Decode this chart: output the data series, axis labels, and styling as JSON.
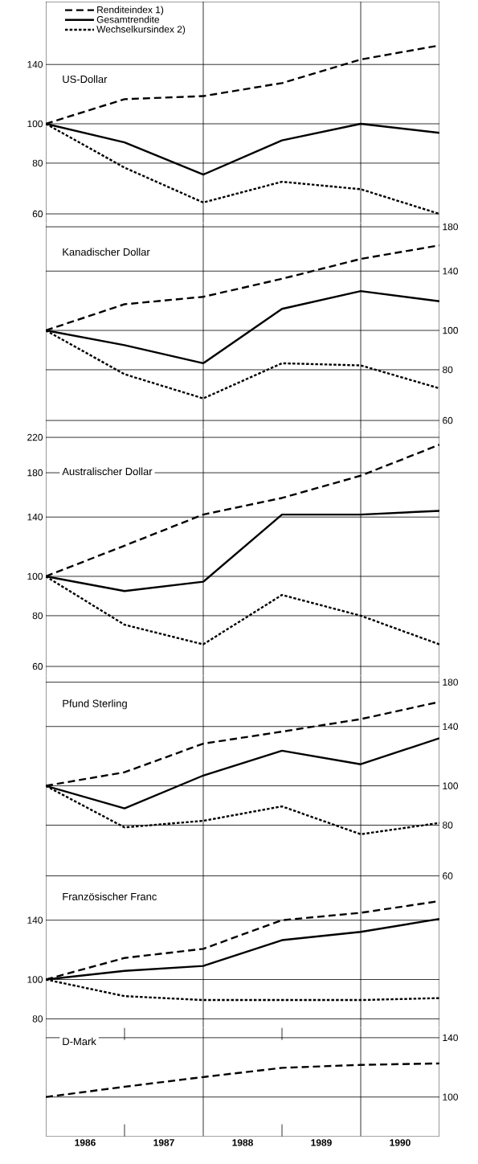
{
  "chart_data": [
    {
      "type": "line",
      "title": "US-Dollar",
      "x": [
        1986,
        1987,
        1988,
        1989,
        1990,
        1991
      ],
      "xlim": [
        1986,
        1991
      ],
      "ylim": [
        57,
        200
      ],
      "yticks": [
        60,
        80,
        100,
        140
      ],
      "log": true,
      "grid": "y",
      "tick_labels": "y",
      "legend": "top left",
      "ref_lines": [
        {
          "axis": "x",
          "value": 1988
        },
        {
          "axis": "x",
          "value": 1990
        }
      ],
      "series": [
        {
          "name": "Renditeindex 1)",
          "color": "#000000",
          "line_style": "dashed",
          "values": [
            100,
            115,
            117,
            126,
            144,
            156
          ]
        },
        {
          "name": "Gesamtrendite",
          "color": "#000000",
          "line_style": "solid",
          "values": [
            100,
            90,
            75,
            91,
            100,
            95
          ]
        },
        {
          "name": "Wechselkursindex 2)",
          "color": "#000000",
          "line_style": "dotted",
          "values": [
            100,
            78,
            64,
            72,
            69,
            60
          ]
        }
      ]
    },
    {
      "type": "line",
      "title": "Kanadischer Dollar",
      "x": [
        1986,
        1987,
        1988,
        1989,
        1990,
        1991
      ],
      "xlim": [
        1986,
        1991
      ],
      "ylim": [
        57,
        184
      ],
      "yticks": [
        60,
        80,
        100,
        140,
        180
      ],
      "log": true,
      "grid": "y",
      "tick_labels": "y",
      "ref_lines": [
        {
          "axis": "x",
          "value": 1988
        },
        {
          "axis": "x",
          "value": 1990
        }
      ],
      "series": [
        {
          "color": "#000000",
          "line_style": "dashed",
          "values": [
            100,
            116,
            121,
            134,
            150,
            162
          ]
        },
        {
          "color": "#000000",
          "line_style": "solid",
          "values": [
            100,
            92,
            83,
            113,
            125,
            118
          ]
        },
        {
          "color": "#000000",
          "line_style": "dotted",
          "values": [
            100,
            78,
            68,
            83,
            82,
            72
          ]
        }
      ]
    },
    {
      "type": "line",
      "title": "Australischer Dollar",
      "x": [
        1986,
        1987,
        1988,
        1989,
        1990,
        1991
      ],
      "xlim": [
        1986,
        1991
      ],
      "ylim": [
        57,
        230
      ],
      "yticks": [
        60,
        80,
        100,
        140,
        180,
        220
      ],
      "log": true,
      "grid": "y",
      "tick_labels": "y",
      "ref_lines": [
        {
          "axis": "x",
          "value": 1988
        },
        {
          "axis": "x",
          "value": 1990
        }
      ],
      "series": [
        {
          "color": "#000000",
          "line_style": "dashed",
          "values": [
            100,
            119,
            142,
            156,
            177,
            211
          ]
        },
        {
          "color": "#000000",
          "line_style": "solid",
          "values": [
            100,
            92,
            97,
            142,
            142,
            145
          ]
        },
        {
          "color": "#000000",
          "line_style": "dotted",
          "values": [
            100,
            76,
            68,
            90,
            80,
            68
          ]
        }
      ]
    },
    {
      "type": "line",
      "title": "Pfund Sterling",
      "x": [
        1986,
        1987,
        1988,
        1989,
        1990,
        1991
      ],
      "xlim": [
        1986,
        1991
      ],
      "ylim": [
        58,
        187
      ],
      "yticks": [
        60,
        80,
        100,
        140,
        180
      ],
      "log": true,
      "grid": "y",
      "tick_labels": "y",
      "ref_lines": [
        {
          "axis": "x",
          "value": 1988
        },
        {
          "axis": "x",
          "value": 1990
        }
      ],
      "series": [
        {
          "color": "#000000",
          "line_style": "dashed",
          "values": [
            100,
            108,
            127,
            136,
            146,
            161
          ]
        },
        {
          "color": "#000000",
          "line_style": "solid",
          "values": [
            100,
            88,
            106,
            122,
            113,
            131
          ]
        },
        {
          "color": "#000000",
          "line_style": "dotted",
          "values": [
            100,
            79,
            82,
            89,
            76,
            81
          ]
        }
      ]
    },
    {
      "type": "line",
      "title": "Französischer Franc",
      "x": [
        1986,
        1987,
        1988,
        1989,
        1990,
        1991
      ],
      "xlim": [
        1986,
        1991
      ],
      "ylim": [
        76,
        174
      ],
      "yticks": [
        80,
        100,
        140
      ],
      "log": true,
      "grid": "y",
      "tick_labels": "y",
      "ref_lines": [
        {
          "axis": "x",
          "value": 1988
        },
        {
          "axis": "x",
          "value": 1990
        }
      ],
      "series": [
        {
          "color": "#000000",
          "line_style": "dashed",
          "values": [
            100,
            113,
            119,
            140,
            146,
            156
          ]
        },
        {
          "color": "#000000",
          "line_style": "solid",
          "values": [
            100,
            105,
            108,
            125,
            131,
            141
          ]
        },
        {
          "color": "#000000",
          "line_style": "dotted",
          "values": [
            100,
            91,
            89,
            89,
            89,
            90
          ]
        }
      ]
    },
    {
      "type": "line",
      "title": "D-Mark",
      "x": [
        1986,
        1987,
        1988,
        1989,
        1990,
        1991
      ],
      "xlim": [
        1986,
        1991
      ],
      "ylim": [
        80,
        148
      ],
      "yticks": [
        100,
        140
      ],
      "log": true,
      "grid": "y",
      "xticks": [
        {
          "value": 1986.5,
          "label": "1986"
        },
        {
          "value": 1987,
          "label": null
        },
        {
          "value": 1987.5,
          "label": "1987"
        },
        {
          "value": 1988.5,
          "label": "1988"
        },
        {
          "value": 1989,
          "label": null
        },
        {
          "value": 1989.5,
          "label": "1989"
        },
        {
          "value": 1990.5,
          "label": "1990"
        }
      ],
      "ref_lines": [
        {
          "axis": "x",
          "value": 1988
        },
        {
          "axis": "x",
          "value": 1990
        }
      ],
      "series": [
        {
          "color": "#000000",
          "line_style": "dashed",
          "values": [
            100,
            106,
            112,
            118,
            120,
            121
          ]
        }
      ]
    }
  ]
}
